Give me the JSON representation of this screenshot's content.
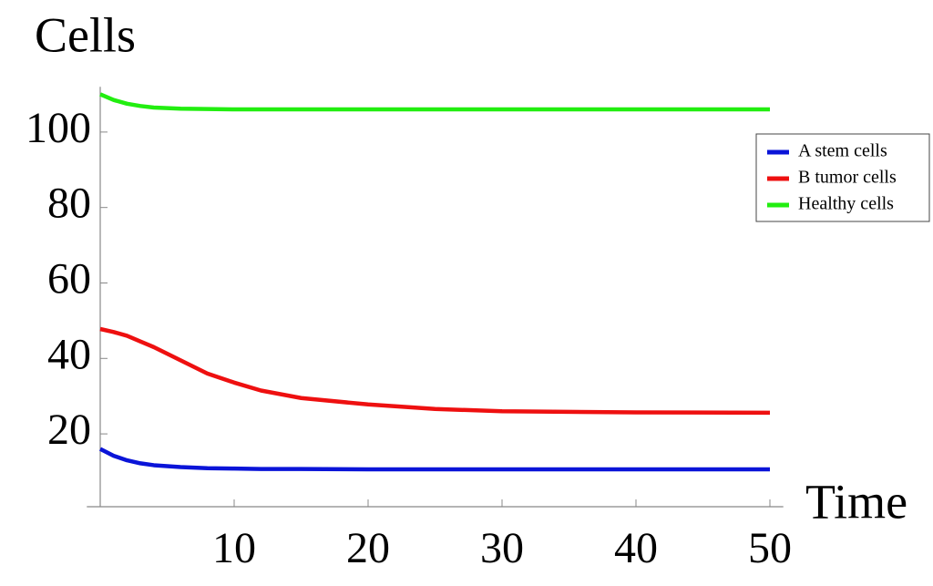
{
  "chart_data": {
    "type": "line",
    "ylabel": "Cells",
    "xlabel": "Time",
    "x": [
      0,
      1,
      2,
      3,
      4,
      6,
      8,
      10,
      12,
      15,
      20,
      25,
      30,
      40,
      50
    ],
    "series": [
      {
        "name": "A stem cells",
        "color": "#0a14d8",
        "values": [
          16,
          14.2,
          13,
          12.2,
          11.7,
          11.2,
          10.9,
          10.8,
          10.7,
          10.7,
          10.6,
          10.6,
          10.6,
          10.6,
          10.6
        ]
      },
      {
        "name": "B tumor cells",
        "color": "#ee1010",
        "values": [
          47.8,
          47,
          46,
          44.5,
          43,
          39.5,
          36,
          33.6,
          31.5,
          29.5,
          27.8,
          26.6,
          26,
          25.7,
          25.6
        ]
      },
      {
        "name": "Healthy cells",
        "color": "#22ee10",
        "values": [
          110,
          108.5,
          107.5,
          106.9,
          106.5,
          106.2,
          106.1,
          106,
          106,
          106,
          106,
          106,
          106,
          106,
          106
        ]
      }
    ],
    "xlim": [
      -1,
      51
    ],
    "ylim": [
      0.7,
      112
    ],
    "xticks": [
      10,
      20,
      30,
      40,
      50
    ],
    "yticks": [
      20,
      40,
      60,
      80,
      100
    ],
    "legend": "right"
  }
}
